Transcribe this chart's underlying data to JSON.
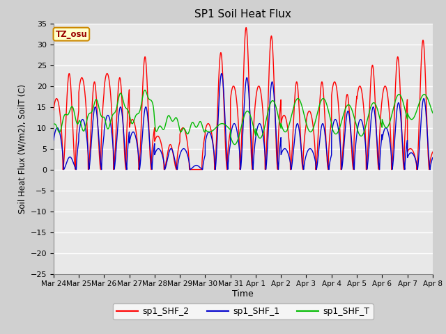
{
  "title": "SP1 Soil Heat Flux",
  "xlabel": "Time",
  "ylabel": "Soil Heat Flux (W/m2), SoilT (C)",
  "ylim": [
    -25,
    35
  ],
  "yticks": [
    -25,
    -20,
    -15,
    -10,
    -5,
    0,
    5,
    10,
    15,
    20,
    25,
    30,
    35
  ],
  "xtick_labels": [
    "Mar 24",
    "Mar 25",
    "Mar 26",
    "Mar 27",
    "Mar 28",
    "Mar 29",
    "Mar 30",
    "Mar 31",
    "Apr 1",
    "Apr 2",
    "Apr 3",
    "Apr 4",
    "Apr 5",
    "Apr 6",
    "Apr 7",
    "Apr 8"
  ],
  "n_days": 15,
  "fig_bg": "#d0d0d0",
  "ax_bg": "#e8e8e8",
  "grid_color": "#ffffff",
  "line_colors": {
    "sp1_SHF_2": "#ff0000",
    "sp1_SHF_1": "#0000cc",
    "sp1_SHF_T": "#00bb00"
  },
  "tz_label": "TZ_osu",
  "tz_bg": "#ffffcc",
  "tz_border": "#cc8800"
}
